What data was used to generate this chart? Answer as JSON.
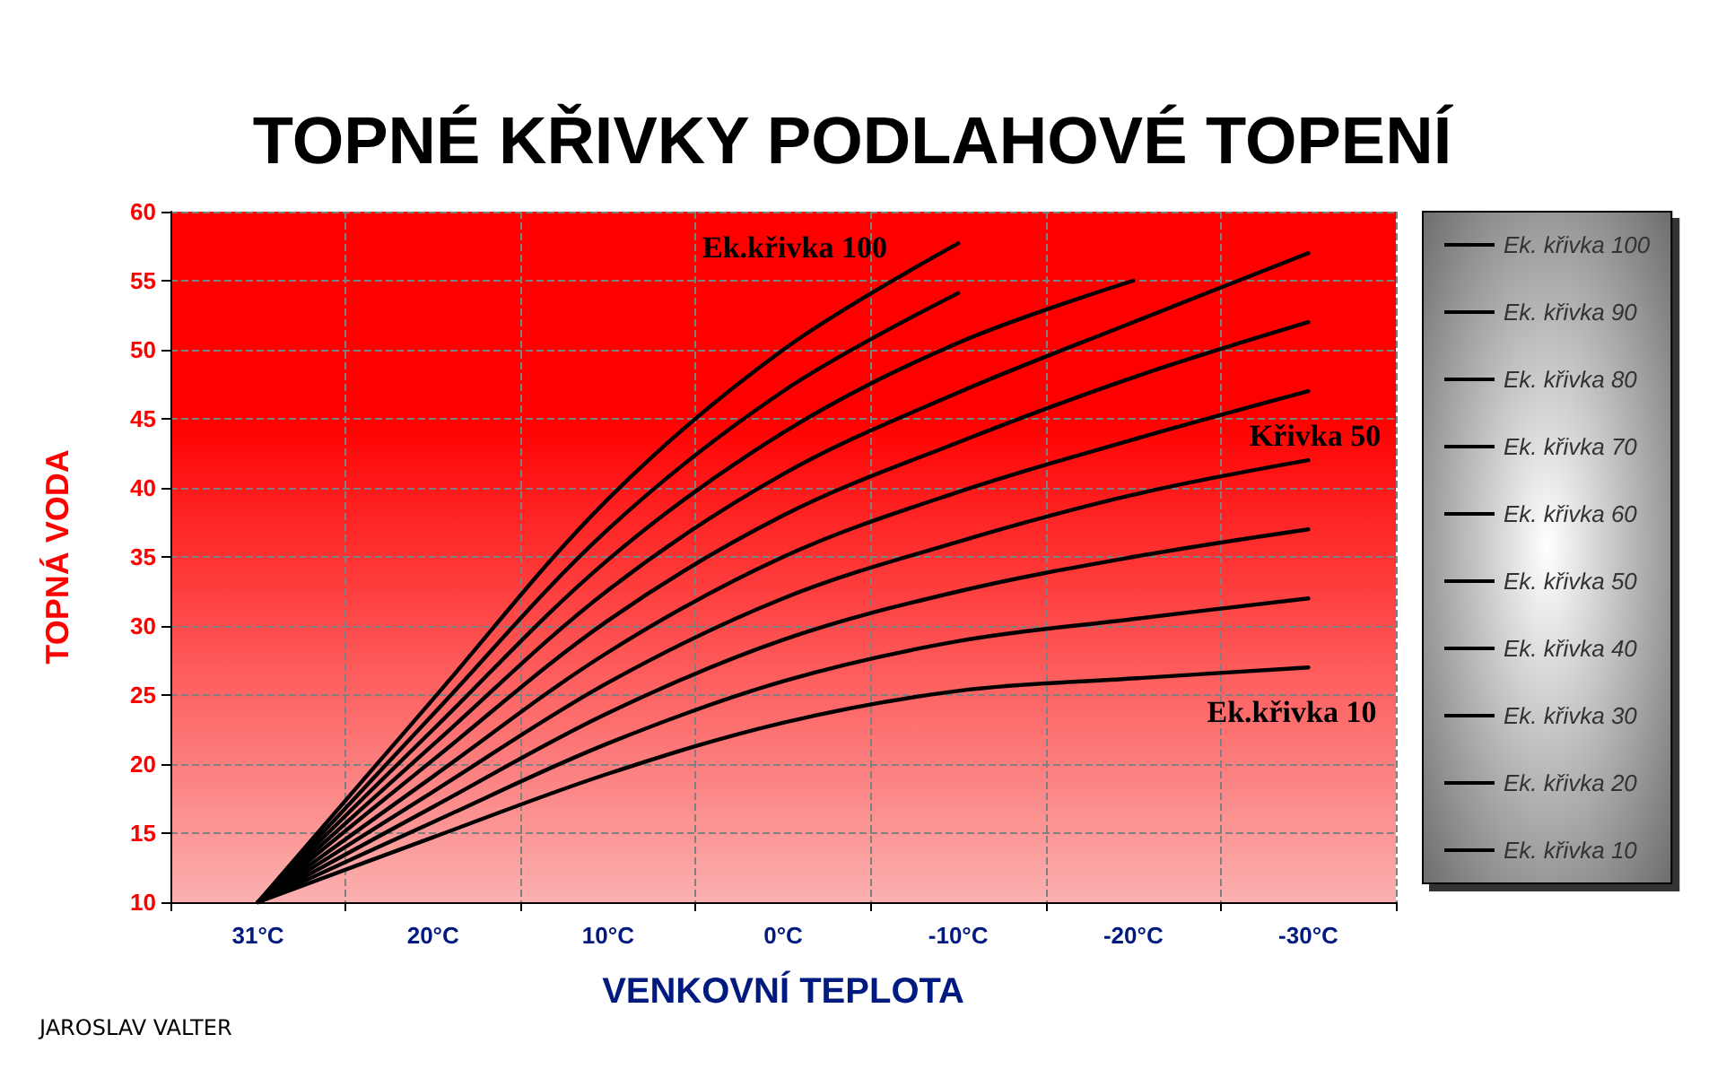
{
  "chart_data": {
    "type": "line",
    "title": "TOPNÉ KŘIVKY PODLAHOVÉ TOPENÍ",
    "xlabel": "VENKOVNÍ TEPLOTA",
    "ylabel": "TOPNÁ VODA",
    "categories": [
      "31°C",
      "20°C",
      "10°C",
      "0°C",
      "-10°C",
      "-20°C",
      "-30°C"
    ],
    "series": [
      {
        "name": "Ek. křivka 100",
        "color": "#000000",
        "values": [
          10,
          24.7,
          39.2,
          50,
          57.7,
          null,
          null
        ]
      },
      {
        "name": "Ek. křivka 90",
        "color": "#000000",
        "values": [
          10,
          23.6,
          37,
          47,
          54.1,
          null,
          null
        ]
      },
      {
        "name": "Ek. křivka 80",
        "color": "#000000",
        "values": [
          10,
          22.5,
          34.8,
          44,
          50.5,
          55,
          null
        ]
      },
      {
        "name": "Ek. křivka 70",
        "color": "#000000",
        "values": [
          10,
          21.4,
          32.6,
          41,
          46.9,
          52,
          57
        ]
      },
      {
        "name": "Ek. křivka 60",
        "color": "#000000",
        "values": [
          10,
          20.3,
          30.4,
          38,
          43.3,
          48,
          52
        ]
      },
      {
        "name": "Ek. křivka 50",
        "color": "#000000",
        "values": [
          10,
          19.1,
          28.1,
          35,
          39.7,
          43.5,
          47
        ]
      },
      {
        "name": "Ek. křivka 40",
        "color": "#000000",
        "values": [
          10,
          18,
          25.9,
          32,
          36.1,
          39.5,
          42
        ]
      },
      {
        "name": "Ek. křivka 30",
        "color": "#000000",
        "values": [
          10,
          16.9,
          23.7,
          29,
          32.5,
          35,
          37
        ]
      },
      {
        "name": "Ek. křivka 20",
        "color": "#000000",
        "values": [
          10,
          15.8,
          21.5,
          26,
          28.9,
          30.5,
          32
        ]
      },
      {
        "name": "Ek. křivka 10",
        "color": "#000000",
        "values": [
          10,
          14.7,
          19.3,
          23,
          25.3,
          26.2,
          27
        ]
      }
    ],
    "ylim": [
      10,
      60
    ],
    "yticks": [
      10,
      15,
      20,
      25,
      30,
      35,
      40,
      45,
      50,
      55,
      60
    ],
    "grid": true,
    "legend": "right",
    "marker": "none",
    "annotations": [
      "Ek.křivka 100",
      "Křivka 50",
      "Ek.křivka 10",
      "JAROSLAV VALTER"
    ]
  }
}
